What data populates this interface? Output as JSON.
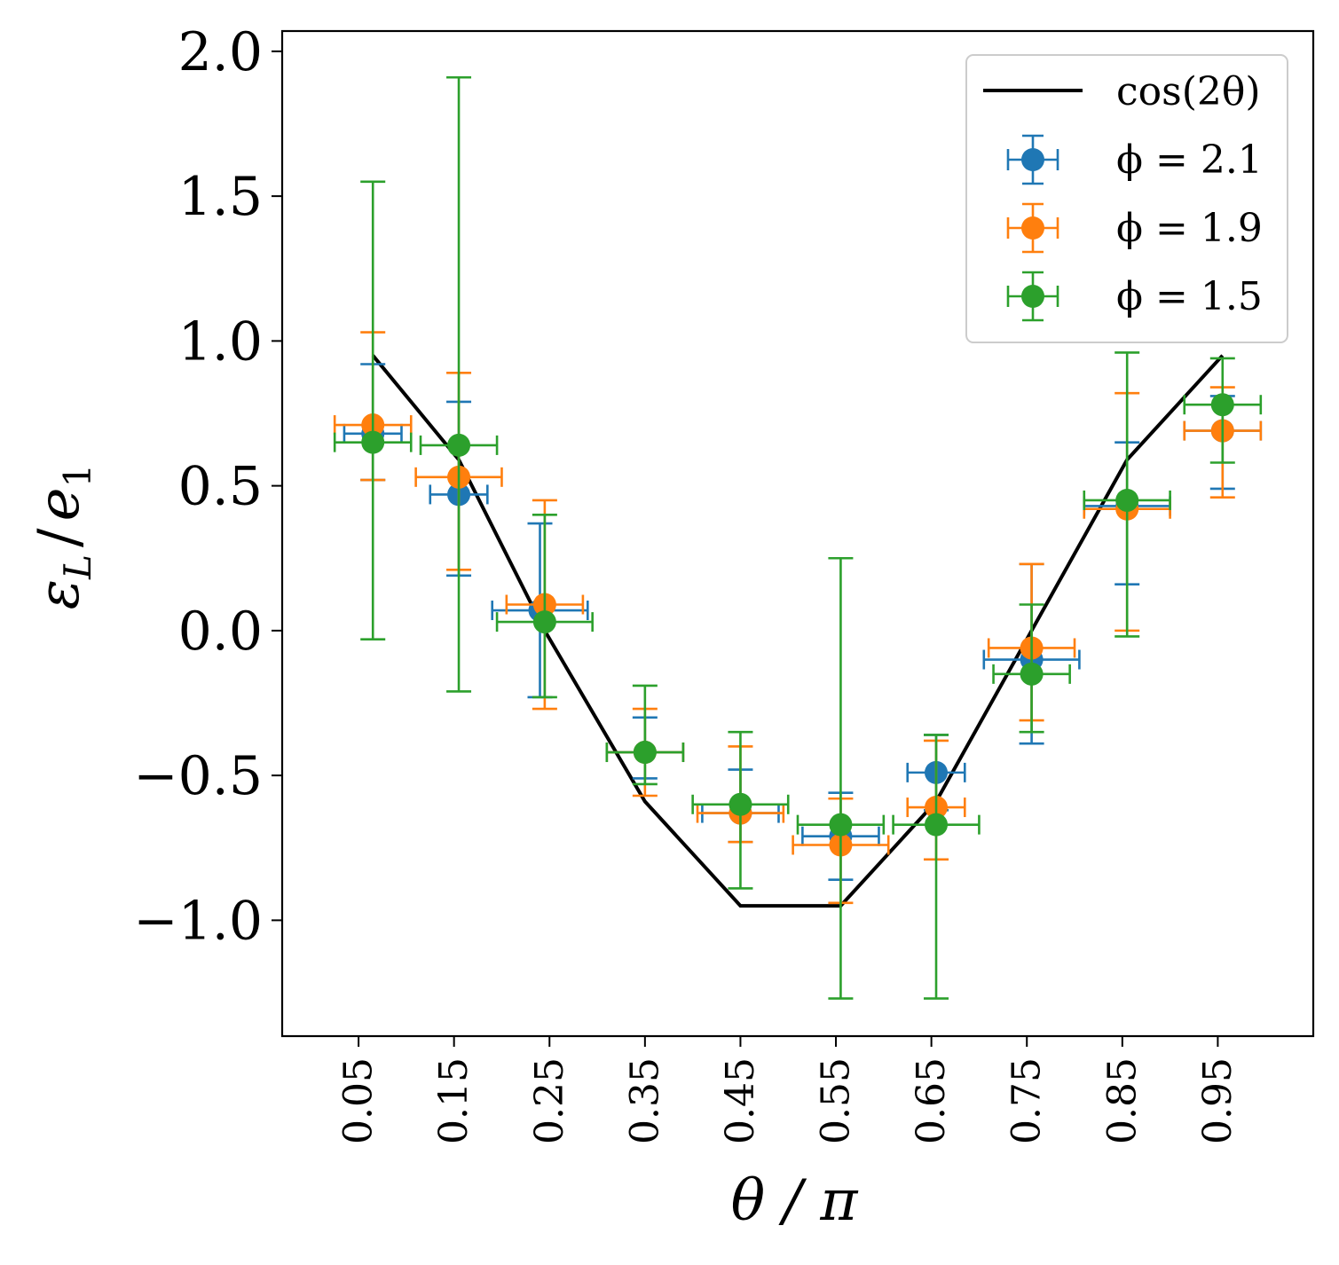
{
  "chart_data": {
    "type": "scatter",
    "title": "",
    "xlabel": "θ / π",
    "ylabel": "ε_L / e_1",
    "ylabel_main": "ε",
    "ylabel_main_sub": "L",
    "ylabel_div": "/",
    "ylabel_den": "e",
    "ylabel_den_sub": "1",
    "xlim": [
      -0.03,
      1.05
    ],
    "ylim": [
      -1.4,
      2.07
    ],
    "xticks": [
      0.05,
      0.15,
      0.25,
      0.35,
      0.45,
      0.55,
      0.65,
      0.75,
      0.85,
      0.95
    ],
    "xtick_labels": [
      "0.05",
      "0.15",
      "0.25",
      "0.35",
      "0.45",
      "0.55",
      "0.65",
      "0.75",
      "0.85",
      "0.95"
    ],
    "yticks": [
      -1.0,
      -0.5,
      0.0,
      0.5,
      1.0,
      1.5,
      2.0
    ],
    "ytick_labels": [
      "−1.0",
      "−0.5",
      "0.0",
      "0.5",
      "1.0",
      "1.5",
      "2.0"
    ],
    "grid": false,
    "legend_position": "top-right",
    "line": {
      "name": "cos(2θ)",
      "color": "#000000",
      "x": [
        0.065,
        0.155,
        0.245,
        0.35,
        0.45,
        0.555,
        0.655,
        0.755,
        0.855,
        0.955
      ],
      "y": [
        0.95,
        0.59,
        0.0,
        -0.59,
        -0.95,
        -0.95,
        -0.59,
        0.0,
        0.59,
        0.95
      ]
    },
    "series": [
      {
        "name": "ϕ = 2.1",
        "color": "#1f77b4",
        "x": [
          0.065,
          0.155,
          0.24,
          0.35,
          0.45,
          0.555,
          0.655,
          0.755,
          0.855,
          0.955
        ],
        "y": [
          0.68,
          0.47,
          0.07,
          -0.42,
          -0.63,
          -0.71,
          -0.49,
          -0.1,
          0.43,
          0.69
        ],
        "xerr": [
          0.03,
          0.03,
          0.05,
          0.04,
          0.04,
          0.04,
          0.03,
          0.05,
          0.045,
          0.04
        ],
        "yerr_low": [
          0.16,
          0.28,
          0.3,
          0.09,
          0.1,
          0.15,
          0.13,
          0.29,
          0.27,
          0.2
        ],
        "yerr_high": [
          0.24,
          0.32,
          0.3,
          0.12,
          0.15,
          0.15,
          0.13,
          0.33,
          0.22,
          0.12
        ]
      },
      {
        "name": "ϕ = 1.9",
        "color": "#ff7f0e",
        "x": [
          0.065,
          0.155,
          0.245,
          0.35,
          0.45,
          0.555,
          0.655,
          0.755,
          0.855,
          0.955
        ],
        "y": [
          0.71,
          0.53,
          0.09,
          -0.42,
          -0.63,
          -0.74,
          -0.61,
          -0.06,
          0.42,
          0.69
        ],
        "xerr": [
          0.04,
          0.045,
          0.04,
          0.04,
          0.045,
          0.05,
          0.03,
          0.045,
          0.045,
          0.04
        ],
        "yerr_low": [
          0.19,
          0.32,
          0.36,
          0.15,
          0.1,
          0.2,
          0.18,
          0.25,
          0.42,
          0.23
        ],
        "yerr_high": [
          0.32,
          0.36,
          0.36,
          0.15,
          0.23,
          0.16,
          0.23,
          0.29,
          0.4,
          0.15
        ]
      },
      {
        "name": "ϕ = 1.5",
        "color": "#2ca02c",
        "x": [
          0.065,
          0.155,
          0.245,
          0.35,
          0.45,
          0.555,
          0.655,
          0.755,
          0.855,
          0.955
        ],
        "y": [
          0.65,
          0.64,
          0.03,
          -0.42,
          -0.6,
          -0.67,
          -0.67,
          -0.15,
          0.45,
          0.78
        ],
        "xerr": [
          0.04,
          0.04,
          0.05,
          0.04,
          0.05,
          0.045,
          0.045,
          0.04,
          0.045,
          0.04
        ],
        "yerr_low": [
          0.68,
          0.85,
          0.26,
          0.11,
          0.29,
          0.6,
          0.6,
          0.2,
          0.47,
          0.2
        ],
        "yerr_high": [
          0.9,
          1.27,
          0.37,
          0.23,
          0.25,
          0.92,
          0.31,
          0.24,
          0.51,
          0.16
        ]
      }
    ]
  }
}
